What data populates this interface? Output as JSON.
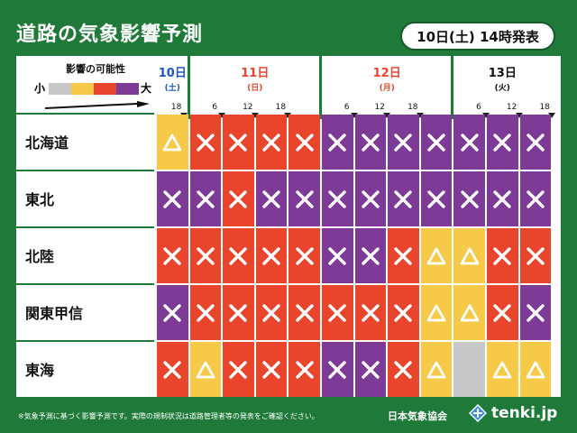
{
  "title": "道路の気象影響予測",
  "issued": "10日(土) 14時発表",
  "legend": {
    "title": "影響の可能性",
    "small": "小",
    "big": "大",
    "colors": [
      "#c8c8c8",
      "#f7c948",
      "#e8452c",
      "#7d3a96"
    ]
  },
  "colors": {
    "none": "#c8c8c8",
    "low": "#f7c948",
    "mid": "#e8452c",
    "high": "#7d3a96",
    "frame": "#1f7a3a"
  },
  "days": [
    {
      "date": "10日",
      "weekday": "(土)",
      "color": "#1a57c9"
    },
    {
      "date": "11日",
      "weekday": "(日)",
      "color": "#e8452c"
    },
    {
      "date": "12日",
      "weekday": "(月)",
      "color": "#e8452c"
    },
    {
      "date": "13日",
      "weekday": "(火)",
      "color": "#111111"
    }
  ],
  "hours": [
    "18",
    "6",
    "12",
    "18",
    "6",
    "12",
    "18",
    "6",
    "12",
    "18"
  ],
  "regions": [
    {
      "name": "北海道",
      "cells": [
        {
          "c": "low",
          "m": "triangle"
        },
        {
          "c": "mid",
          "m": "cross"
        },
        {
          "c": "mid",
          "m": "cross"
        },
        {
          "c": "mid",
          "m": "cross"
        },
        {
          "c": "mid",
          "m": "cross"
        },
        {
          "c": "high",
          "m": "cross"
        },
        {
          "c": "high",
          "m": "cross"
        },
        {
          "c": "high",
          "m": "cross"
        },
        {
          "c": "high",
          "m": "cross"
        },
        {
          "c": "high",
          "m": "cross"
        },
        {
          "c": "high",
          "m": "cross"
        },
        {
          "c": "high",
          "m": "cross"
        }
      ]
    },
    {
      "name": "東北",
      "cells": [
        {
          "c": "high",
          "m": "cross"
        },
        {
          "c": "high",
          "m": "cross"
        },
        {
          "c": "mid",
          "m": "cross"
        },
        {
          "c": "high",
          "m": "cross"
        },
        {
          "c": "high",
          "m": "cross"
        },
        {
          "c": "high",
          "m": "cross"
        },
        {
          "c": "high",
          "m": "cross"
        },
        {
          "c": "high",
          "m": "cross"
        },
        {
          "c": "high",
          "m": "cross"
        },
        {
          "c": "high",
          "m": "cross"
        },
        {
          "c": "high",
          "m": "cross"
        },
        {
          "c": "high",
          "m": "cross"
        }
      ]
    },
    {
      "name": "北陸",
      "cells": [
        {
          "c": "mid",
          "m": "cross"
        },
        {
          "c": "mid",
          "m": "cross"
        },
        {
          "c": "mid",
          "m": "cross"
        },
        {
          "c": "mid",
          "m": "cross"
        },
        {
          "c": "mid",
          "m": "cross"
        },
        {
          "c": "high",
          "m": "cross"
        },
        {
          "c": "high",
          "m": "cross"
        },
        {
          "c": "mid",
          "m": "cross"
        },
        {
          "c": "low",
          "m": "triangle"
        },
        {
          "c": "low",
          "m": "triangle"
        },
        {
          "c": "mid",
          "m": "cross"
        },
        {
          "c": "mid",
          "m": "cross"
        }
      ]
    },
    {
      "name": "関東甲信",
      "cells": [
        {
          "c": "high",
          "m": "cross"
        },
        {
          "c": "mid",
          "m": "cross"
        },
        {
          "c": "mid",
          "m": "cross"
        },
        {
          "c": "mid",
          "m": "cross"
        },
        {
          "c": "mid",
          "m": "cross"
        },
        {
          "c": "mid",
          "m": "cross"
        },
        {
          "c": "mid",
          "m": "cross"
        },
        {
          "c": "mid",
          "m": "cross"
        },
        {
          "c": "low",
          "m": "triangle"
        },
        {
          "c": "low",
          "m": "triangle"
        },
        {
          "c": "mid",
          "m": "cross"
        },
        {
          "c": "high",
          "m": "cross"
        }
      ]
    },
    {
      "name": "東海",
      "cells": [
        {
          "c": "mid",
          "m": "cross"
        },
        {
          "c": "low",
          "m": "triangle"
        },
        {
          "c": "mid",
          "m": "cross"
        },
        {
          "c": "mid",
          "m": "cross"
        },
        {
          "c": "mid",
          "m": "cross"
        },
        {
          "c": "high",
          "m": "cross"
        },
        {
          "c": "high",
          "m": "cross"
        },
        {
          "c": "mid",
          "m": "cross"
        },
        {
          "c": "low",
          "m": "triangle"
        },
        {
          "c": "none",
          "m": "none"
        },
        {
          "c": "low",
          "m": "triangle"
        },
        {
          "c": "low",
          "m": "triangle"
        }
      ]
    }
  ],
  "footnote": "※気象予測に基づく影響予測です。実際の規制状況は道路管理者等の発表をご確認ください。",
  "organization": "日本気象協会",
  "brand": "tenki.jp"
}
